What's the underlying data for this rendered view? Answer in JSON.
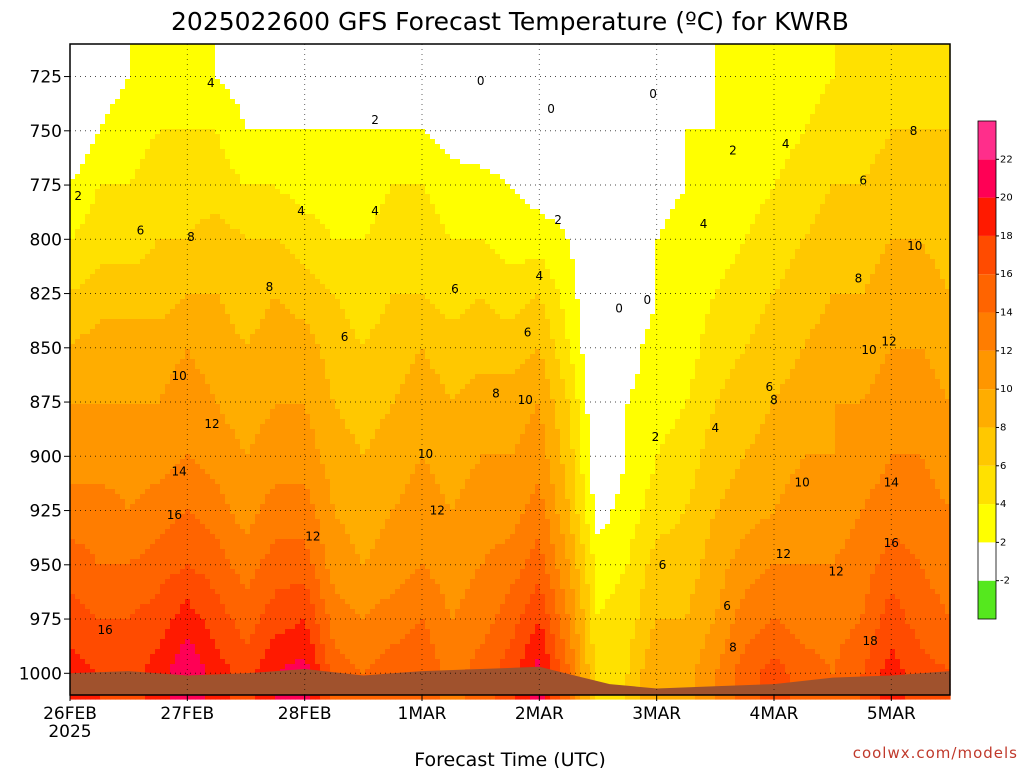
{
  "title": "2025022600 GFS Forecast Temperature (ºC) for KWRB",
  "xlabel": "Forecast Time (UTC)",
  "credit": "coolwx.com/models",
  "chart_data": {
    "type": "heatmap",
    "title": "2025022600 GFS Forecast Temperature (ºC) for KWRB",
    "xlabel": "Forecast Time (UTC)",
    "ylabel": "",
    "x_ticks": [
      "26FEB",
      "27FEB",
      "28FEB",
      "1MAR",
      "2MAR",
      "3MAR",
      "4MAR",
      "5MAR"
    ],
    "x_tick_year": "2025",
    "y_ticks": [
      725,
      750,
      775,
      800,
      825,
      850,
      875,
      900,
      925,
      950,
      975,
      1000
    ],
    "y_axis": "pressure (hPa), inverted",
    "ylim": [
      1010,
      710
    ],
    "xlim_days": [
      0,
      7.5
    ],
    "grid": true,
    "colorbar": {
      "levels": [
        -2,
        2,
        4,
        6,
        8,
        10,
        12,
        14,
        16,
        18,
        20,
        22
      ],
      "colors": [
        "#55e81e",
        "#ffffff",
        "#ffff00",
        "#ffe100",
        "#ffc800",
        "#ffad00",
        "#ff9600",
        "#ff7d00",
        "#ff6400",
        "#ff4b00",
        "#ff1a00",
        "#ff0055",
        "#ff2e8b"
      ],
      "position": "right"
    },
    "fields": {
      "x_days": [
        0,
        0.25,
        0.5,
        0.75,
        1,
        1.25,
        1.5,
        1.75,
        2,
        2.25,
        2.5,
        2.75,
        3,
        3.25,
        3.5,
        3.75,
        4,
        4.25,
        4.5,
        4.75,
        5,
        5.25,
        5.5,
        5.75,
        6,
        6.25,
        6.5,
        6.75,
        7,
        7.25,
        7.5
      ],
      "levels_hpa": [
        1000,
        975,
        950,
        925,
        900,
        875,
        850,
        825,
        800,
        775,
        750,
        725
      ],
      "temperature_c": [
        [
          19,
          18,
          17,
          19,
          22,
          19,
          17,
          20,
          21,
          15,
          14,
          15,
          16,
          13,
          15,
          17,
          21,
          14,
          5,
          6,
          10,
          9,
          12,
          15,
          17,
          15,
          14,
          16,
          19,
          17,
          16
        ],
        [
          17,
          16,
          16,
          17,
          19,
          17,
          15,
          17,
          18,
          13,
          12,
          13,
          14,
          12,
          13,
          15,
          18,
          12,
          4,
          5,
          8,
          8,
          10,
          13,
          14,
          13,
          13,
          14,
          17,
          15,
          14
        ],
        [
          15,
          14,
          14,
          15,
          16,
          15,
          13,
          15,
          15,
          11,
          10,
          11,
          12,
          11,
          12,
          13,
          15,
          10,
          3,
          4,
          7,
          7,
          9,
          11,
          12,
          12,
          12,
          13,
          15,
          14,
          13
        ],
        [
          13,
          13,
          12,
          13,
          14,
          13,
          11,
          13,
          13,
          10,
          9,
          10,
          11,
          10,
          11,
          11,
          13,
          8,
          1,
          3,
          5,
          6,
          8,
          9,
          10,
          11,
          11,
          12,
          13,
          13,
          12
        ],
        [
          11,
          11,
          11,
          11,
          12,
          11,
          10,
          11,
          11,
          9,
          8,
          9,
          10,
          9,
          10,
          10,
          11,
          7,
          0,
          2,
          4,
          5,
          7,
          8,
          9,
          10,
          10,
          11,
          12,
          12,
          11
        ],
        [
          10,
          10,
          10,
          10,
          11,
          10,
          9,
          10,
          10,
          8,
          7,
          8,
          9,
          8,
          9,
          9,
          10,
          6,
          -0.5,
          2,
          3,
          4,
          6,
          7,
          8,
          9,
          10,
          10,
          11,
          11,
          10
        ],
        [
          8,
          9,
          9,
          9,
          10,
          9,
          8,
          9,
          9,
          7,
          6,
          7,
          8,
          7,
          7,
          7,
          8,
          4,
          -0.5,
          1,
          3,
          3,
          5,
          6,
          7,
          8,
          9,
          9,
          10,
          10,
          9
        ],
        [
          6,
          7,
          7,
          7,
          8,
          8,
          7,
          8,
          7,
          6,
          5,
          6,
          6,
          5,
          6,
          5,
          6,
          3,
          -0.5,
          -0.5,
          2,
          3,
          4,
          5,
          6,
          7,
          8,
          8,
          9,
          9,
          8
        ],
        [
          4,
          5,
          5,
          6,
          6,
          7,
          6,
          6,
          5,
          4,
          4,
          5,
          5,
          4,
          4,
          3,
          3,
          2,
          -0.5,
          -0.5,
          2,
          3,
          3,
          4,
          5,
          6,
          7,
          7,
          8,
          8,
          7
        ],
        [
          2,
          4,
          4,
          5,
          5,
          5,
          4,
          4,
          3,
          3,
          3,
          4,
          4,
          3,
          3,
          2,
          1,
          1,
          -0.5,
          -0.5,
          1,
          2,
          3,
          3,
          4,
          5,
          6,
          6,
          7,
          7,
          6
        ],
        [
          -0.5,
          2,
          3,
          4,
          4,
          4,
          2,
          2,
          2,
          2,
          2,
          2,
          2,
          1,
          0,
          0,
          -0.5,
          -0.5,
          -0.5,
          -0.5,
          1,
          2,
          2,
          3,
          3,
          4,
          5,
          5,
          6,
          6,
          6
        ],
        [
          -0.5,
          1,
          2,
          3,
          3,
          2,
          1,
          1,
          1,
          1,
          0,
          0,
          -0.5,
          -0.5,
          -0.5,
          -0.5,
          -0.5,
          -0.5,
          -0.5,
          -0.5,
          0.5,
          1,
          2,
          2,
          3,
          3,
          4,
          4,
          5,
          5,
          5
        ]
      ]
    },
    "contour_labels": [
      {
        "t": 0.07,
        "p": 780,
        "text": "2"
      },
      {
        "t": 1.2,
        "p": 728,
        "text": "4"
      },
      {
        "t": 2.6,
        "p": 745,
        "text": "2"
      },
      {
        "t": 3.5,
        "p": 727,
        "text": "0"
      },
      {
        "t": 4.1,
        "p": 740,
        "text": "0"
      },
      {
        "t": 4.97,
        "p": 733,
        "text": "0"
      },
      {
        "t": 5.65,
        "p": 759,
        "text": "2"
      },
      {
        "t": 6.1,
        "p": 756,
        "text": "4"
      },
      {
        "t": 7.19,
        "p": 750,
        "text": "8"
      },
      {
        "t": 0.6,
        "p": 796,
        "text": "6"
      },
      {
        "t": 1.03,
        "p": 799,
        "text": "8"
      },
      {
        "t": 1.97,
        "p": 787,
        "text": "4"
      },
      {
        "t": 2.6,
        "p": 787,
        "text": "4"
      },
      {
        "t": 4.16,
        "p": 791,
        "text": "2"
      },
      {
        "t": 5.4,
        "p": 793,
        "text": "4"
      },
      {
        "t": 6.76,
        "p": 773,
        "text": "6"
      },
      {
        "t": 7.2,
        "p": 803,
        "text": "10"
      },
      {
        "t": 1.7,
        "p": 822,
        "text": "8"
      },
      {
        "t": 3.28,
        "p": 823,
        "text": "6"
      },
      {
        "t": 4.0,
        "p": 817,
        "text": "4"
      },
      {
        "t": 4.68,
        "p": 832,
        "text": "0"
      },
      {
        "t": 4.92,
        "p": 828,
        "text": "0"
      },
      {
        "t": 6.72,
        "p": 818,
        "text": "8"
      },
      {
        "t": 2.34,
        "p": 845,
        "text": "6"
      },
      {
        "t": 3.9,
        "p": 843,
        "text": "6"
      },
      {
        "t": 6.98,
        "p": 847,
        "text": "12"
      },
      {
        "t": 6.81,
        "p": 851,
        "text": "10"
      },
      {
        "t": 0.93,
        "p": 863,
        "text": "10"
      },
      {
        "t": 3.63,
        "p": 871,
        "text": "8"
      },
      {
        "t": 3.88,
        "p": 874,
        "text": "10"
      },
      {
        "t": 5.96,
        "p": 868,
        "text": "6"
      },
      {
        "t": 6.0,
        "p": 874,
        "text": "8"
      },
      {
        "t": 1.21,
        "p": 885,
        "text": "12"
      },
      {
        "t": 4.99,
        "p": 891,
        "text": "2"
      },
      {
        "t": 5.5,
        "p": 887,
        "text": "4"
      },
      {
        "t": 0.93,
        "p": 907,
        "text": "14"
      },
      {
        "t": 3.03,
        "p": 899,
        "text": "10"
      },
      {
        "t": 6.24,
        "p": 912,
        "text": "10"
      },
      {
        "t": 7.0,
        "p": 912,
        "text": "14"
      },
      {
        "t": 0.89,
        "p": 927,
        "text": "16"
      },
      {
        "t": 2.07,
        "p": 937,
        "text": "12"
      },
      {
        "t": 3.13,
        "p": 925,
        "text": "12"
      },
      {
        "t": 6.08,
        "p": 945,
        "text": "12"
      },
      {
        "t": 7.0,
        "p": 940,
        "text": "16"
      },
      {
        "t": 5.05,
        "p": 950,
        "text": "6"
      },
      {
        "t": 6.53,
        "p": 953,
        "text": "12"
      },
      {
        "t": 5.6,
        "p": 969,
        "text": "6"
      },
      {
        "t": 0.3,
        "p": 980,
        "text": "16"
      },
      {
        "t": 6.82,
        "p": 985,
        "text": "18"
      },
      {
        "t": 5.65,
        "p": 988,
        "text": "8"
      }
    ]
  }
}
